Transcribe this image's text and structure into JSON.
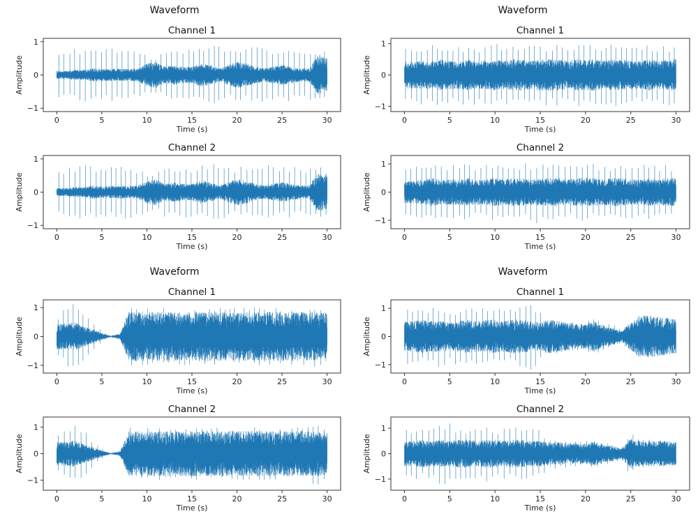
{
  "colors": {
    "line": "#1f77b4",
    "axes": "#333333",
    "background": "#ffffff"
  },
  "chart_data": [
    {
      "type": "line",
      "title": "Waveform",
      "subplots": [
        {
          "title": "Channel 1",
          "xlabel": "Time (s)",
          "ylabel": "Amplitude",
          "xlim": [
            -1.5,
            31.5
          ],
          "ylim": [
            -1.1,
            1.1
          ],
          "xticks": [
            0,
            5,
            10,
            15,
            20,
            25,
            30
          ],
          "yticks": [
            -1,
            0,
            1
          ],
          "envelope_time_s": [
            0,
            1,
            2,
            3,
            4,
            5,
            6,
            7,
            8,
            9,
            10,
            11,
            12,
            13,
            14,
            15,
            16,
            17,
            18,
            19,
            20,
            21,
            22,
            23,
            24,
            25,
            26,
            27,
            28,
            29,
            30
          ],
          "body_amplitude": [
            0.12,
            0.12,
            0.15,
            0.15,
            0.2,
            0.18,
            0.18,
            0.2,
            0.18,
            0.2,
            0.35,
            0.4,
            0.25,
            0.3,
            0.25,
            0.25,
            0.35,
            0.3,
            0.2,
            0.3,
            0.4,
            0.35,
            0.25,
            0.2,
            0.25,
            0.3,
            0.25,
            0.2,
            0.2,
            0.6,
            0.5
          ],
          "transient_amplitude": [
            0.7,
            0.7,
            0.8,
            0.8,
            0.8,
            0.75,
            0.8,
            0.8,
            0.8,
            0.75,
            0.6,
            0.6,
            0.75,
            0.7,
            0.8,
            0.75,
            0.8,
            0.85,
            0.95,
            0.8,
            0.75,
            0.8,
            0.85,
            0.85,
            0.8,
            0.75,
            0.8,
            0.7,
            0.75,
            0.8,
            0.7
          ]
        },
        {
          "title": "Channel 2",
          "xlabel": "Time (s)",
          "ylabel": "Amplitude",
          "xlim": [
            -1.5,
            31.5
          ],
          "ylim": [
            -1.1,
            1.1
          ],
          "xticks": [
            0,
            5,
            10,
            15,
            20,
            25,
            30
          ],
          "yticks": [
            -1,
            0,
            1
          ],
          "envelope_time_s": [
            0,
            1,
            2,
            3,
            4,
            5,
            6,
            7,
            8,
            9,
            10,
            11,
            12,
            13,
            14,
            15,
            16,
            17,
            18,
            19,
            20,
            21,
            22,
            23,
            24,
            25,
            26,
            27,
            28,
            29,
            30
          ],
          "body_amplitude": [
            0.12,
            0.12,
            0.15,
            0.15,
            0.2,
            0.18,
            0.18,
            0.2,
            0.18,
            0.2,
            0.35,
            0.4,
            0.25,
            0.3,
            0.25,
            0.25,
            0.35,
            0.3,
            0.2,
            0.3,
            0.4,
            0.35,
            0.25,
            0.2,
            0.25,
            0.3,
            0.25,
            0.2,
            0.2,
            0.6,
            0.5
          ],
          "transient_amplitude": [
            0.7,
            0.7,
            0.8,
            0.8,
            0.8,
            0.75,
            0.8,
            0.8,
            0.8,
            0.75,
            0.6,
            0.6,
            0.75,
            0.7,
            0.8,
            0.75,
            0.8,
            0.85,
            0.9,
            0.8,
            0.75,
            0.8,
            0.85,
            0.85,
            0.8,
            0.75,
            0.8,
            0.7,
            0.75,
            0.85,
            0.7
          ]
        }
      ]
    },
    {
      "type": "line",
      "title": "Waveform",
      "subplots": [
        {
          "title": "Channel 1",
          "xlabel": "Time (s)",
          "ylabel": "Amplitude",
          "xlim": [
            -1.5,
            31.5
          ],
          "ylim": [
            -1.17,
            1.17
          ],
          "xticks": [
            0,
            5,
            10,
            15,
            20,
            25,
            30
          ],
          "yticks": [
            -1,
            0,
            1
          ],
          "envelope_time_s": [
            0,
            1,
            2,
            3,
            4,
            5,
            6,
            7,
            8,
            9,
            10,
            11,
            12,
            13,
            14,
            15,
            16,
            17,
            18,
            19,
            20,
            21,
            22,
            23,
            24,
            25,
            26,
            27,
            28,
            29,
            30
          ],
          "body_amplitude": [
            0.45,
            0.45,
            0.45,
            0.45,
            0.5,
            0.45,
            0.45,
            0.5,
            0.45,
            0.45,
            0.5,
            0.45,
            0.5,
            0.5,
            0.45,
            0.5,
            0.5,
            0.5,
            0.45,
            0.5,
            0.5,
            0.5,
            0.45,
            0.5,
            0.5,
            0.45,
            0.45,
            0.5,
            0.45,
            0.5,
            0.5
          ],
          "transient_amplitude": [
            0.9,
            0.95,
            0.95,
            0.95,
            1.0,
            0.95,
            0.95,
            1.0,
            0.95,
            0.95,
            1.0,
            0.95,
            1.0,
            1.0,
            0.95,
            1.0,
            1.0,
            1.0,
            0.95,
            1.0,
            1.0,
            1.0,
            0.95,
            1.0,
            1.0,
            0.95,
            0.95,
            1.0,
            0.95,
            1.0,
            0.9
          ]
        },
        {
          "title": "Channel 2",
          "xlabel": "Time (s)",
          "ylabel": "Amplitude",
          "xlim": [
            -1.5,
            31.5
          ],
          "ylim": [
            -1.3,
            1.3
          ],
          "xticks": [
            0,
            5,
            10,
            15,
            20,
            25,
            30
          ],
          "yticks": [
            -1,
            0,
            1
          ],
          "envelope_time_s": [
            0,
            1,
            2,
            3,
            4,
            5,
            6,
            7,
            8,
            9,
            10,
            11,
            12,
            13,
            14,
            15,
            16,
            17,
            18,
            19,
            20,
            21,
            22,
            23,
            24,
            25,
            26,
            27,
            28,
            29,
            30
          ],
          "body_amplitude": [
            0.4,
            0.4,
            0.45,
            0.5,
            0.45,
            0.45,
            0.45,
            0.5,
            0.45,
            0.45,
            0.5,
            0.45,
            0.5,
            0.5,
            0.45,
            0.5,
            0.5,
            0.5,
            0.45,
            0.5,
            0.5,
            0.5,
            0.45,
            0.5,
            0.5,
            0.45,
            0.45,
            0.5,
            0.45,
            0.5,
            0.5
          ],
          "transient_amplitude": [
            0.9,
            0.95,
            1.0,
            1.0,
            1.0,
            0.95,
            1.0,
            1.0,
            0.95,
            1.0,
            1.05,
            1.0,
            1.0,
            1.05,
            1.0,
            1.2,
            1.0,
            1.0,
            0.95,
            1.05,
            1.0,
            1.0,
            1.0,
            1.0,
            1.1,
            0.95,
            1.0,
            1.0,
            0.95,
            1.0,
            0.9
          ]
        }
      ]
    },
    {
      "type": "line",
      "title": "Waveform",
      "subplots": [
        {
          "title": "Channel 1",
          "xlabel": "Time (s)",
          "ylabel": "Amplitude",
          "xlim": [
            -1.5,
            31.5
          ],
          "ylim": [
            -1.27,
            1.27
          ],
          "xticks": [
            0,
            5,
            10,
            15,
            20,
            25,
            30
          ],
          "yticks": [
            -1,
            0,
            1
          ],
          "envelope_time_s": [
            0,
            1,
            2,
            3,
            4,
            5,
            6,
            7,
            8,
            9,
            10,
            11,
            12,
            13,
            14,
            15,
            16,
            17,
            18,
            19,
            20,
            21,
            22,
            23,
            24,
            25,
            26,
            27,
            28,
            29,
            30
          ],
          "body_amplitude": [
            0.45,
            0.45,
            0.5,
            0.35,
            0.25,
            0.12,
            0.02,
            0.1,
            0.85,
            0.85,
            0.85,
            0.85,
            0.85,
            0.85,
            0.85,
            0.85,
            0.85,
            0.85,
            0.85,
            0.85,
            0.85,
            0.85,
            0.85,
            0.85,
            0.85,
            0.85,
            0.85,
            0.85,
            0.85,
            0.85,
            0.8
          ],
          "transient_amplitude": [
            0.7,
            1.0,
            1.2,
            0.9,
            0.5,
            0.2,
            0,
            0,
            1.0,
            1.0,
            1.0,
            1.0,
            1.0,
            1.0,
            1.0,
            1.0,
            1.0,
            1.0,
            1.0,
            1.0,
            1.0,
            1.0,
            1.0,
            1.0,
            1.0,
            1.0,
            1.0,
            1.0,
            1.0,
            1.1,
            0.9
          ]
        },
        {
          "title": "Channel 2",
          "xlabel": "Time (s)",
          "ylabel": "Amplitude",
          "xlim": [
            -1.5,
            31.5
          ],
          "ylim": [
            -1.38,
            1.38
          ],
          "xticks": [
            0,
            5,
            10,
            15,
            20,
            25,
            30
          ],
          "yticks": [
            -1,
            0,
            1
          ],
          "envelope_time_s": [
            0,
            1,
            2,
            3,
            4,
            5,
            6,
            7,
            8,
            9,
            10,
            11,
            12,
            13,
            14,
            15,
            16,
            17,
            18,
            19,
            20,
            21,
            22,
            23,
            24,
            25,
            26,
            27,
            28,
            29,
            30
          ],
          "body_amplitude": [
            0.45,
            0.45,
            0.5,
            0.35,
            0.25,
            0.12,
            0.02,
            0.1,
            0.85,
            0.85,
            0.85,
            0.85,
            0.85,
            0.85,
            0.85,
            0.85,
            0.85,
            0.85,
            0.85,
            0.85,
            0.85,
            0.85,
            0.85,
            0.85,
            0.85,
            0.85,
            0.85,
            0.85,
            0.85,
            0.85,
            0.8
          ],
          "transient_amplitude": [
            0.7,
            1.0,
            1.2,
            0.9,
            0.5,
            0.2,
            0,
            0,
            1.0,
            1.0,
            1.0,
            1.0,
            1.0,
            1.0,
            1.0,
            1.0,
            1.0,
            1.0,
            1.0,
            1.0,
            1.0,
            1.0,
            1.0,
            1.0,
            1.0,
            1.0,
            1.0,
            1.0,
            1.0,
            1.3,
            0.9
          ]
        }
      ]
    },
    {
      "type": "line",
      "title": "Waveform",
      "subplots": [
        {
          "title": "Channel 1",
          "xlabel": "Time (s)",
          "ylabel": "Amplitude",
          "xlim": [
            -1.5,
            31.5
          ],
          "ylim": [
            -1.3,
            1.3
          ],
          "xticks": [
            0,
            5,
            10,
            15,
            20,
            25,
            30
          ],
          "yticks": [
            -1,
            0,
            1
          ],
          "envelope_time_s": [
            0,
            1,
            2,
            3,
            4,
            5,
            6,
            7,
            8,
            9,
            10,
            11,
            12,
            13,
            14,
            15,
            16,
            17,
            18,
            19,
            20,
            21,
            22,
            23,
            24,
            25,
            26,
            27,
            28,
            29,
            30
          ],
          "body_amplitude": [
            0.55,
            0.55,
            0.6,
            0.55,
            0.55,
            0.5,
            0.55,
            0.6,
            0.55,
            0.6,
            0.6,
            0.55,
            0.6,
            0.6,
            0.55,
            0.5,
            0.6,
            0.55,
            0.5,
            0.45,
            0.45,
            0.55,
            0.4,
            0.3,
            0.2,
            0.5,
            0.75,
            0.75,
            0.7,
            0.65,
            0.6
          ],
          "transient_amplitude": [
            1.1,
            1.0,
            1.0,
            1.05,
            1.15,
            1.0,
            1.0,
            1.0,
            1.0,
            1.1,
            1.0,
            1.0,
            1.0,
            1.1,
            1.2,
            0.9,
            0.6,
            0.6,
            0.55,
            0.5,
            0.5,
            0.7,
            0.5,
            0.4,
            0.3,
            0.5,
            0.75,
            0.75,
            0.75,
            0.7,
            0.6
          ]
        },
        {
          "title": "Channel 2",
          "xlabel": "Time (s)",
          "ylabel": "Amplitude",
          "xlim": [
            -1.5,
            31.5
          ],
          "ylim": [
            -1.44,
            1.44
          ],
          "xticks": [
            0,
            5,
            10,
            15,
            20,
            25,
            30
          ],
          "yticks": [
            -1,
            0,
            1
          ],
          "envelope_time_s": [
            0,
            1,
            2,
            3,
            4,
            5,
            6,
            7,
            8,
            9,
            10,
            11,
            12,
            13,
            14,
            15,
            16,
            17,
            18,
            19,
            20,
            21,
            22,
            23,
            24,
            25,
            26,
            27,
            28,
            29,
            30
          ],
          "body_amplitude": [
            0.5,
            0.5,
            0.55,
            0.5,
            0.55,
            0.5,
            0.55,
            0.55,
            0.5,
            0.55,
            0.55,
            0.5,
            0.55,
            0.55,
            0.5,
            0.5,
            0.45,
            0.45,
            0.4,
            0.4,
            0.4,
            0.5,
            0.35,
            0.3,
            0.2,
            0.6,
            0.5,
            0.5,
            0.5,
            0.5,
            0.45
          ],
          "transient_amplitude": [
            1.0,
            1.0,
            1.0,
            1.05,
            1.2,
            1.3,
            1.0,
            1.0,
            1.0,
            1.1,
            1.0,
            1.0,
            1.0,
            1.1,
            1.2,
            0.9,
            0.6,
            0.6,
            0.55,
            0.5,
            0.5,
            0.55,
            0.45,
            0.35,
            0.25,
            0.9,
            0.6,
            0.55,
            0.55,
            0.5,
            0.45
          ]
        }
      ]
    }
  ]
}
